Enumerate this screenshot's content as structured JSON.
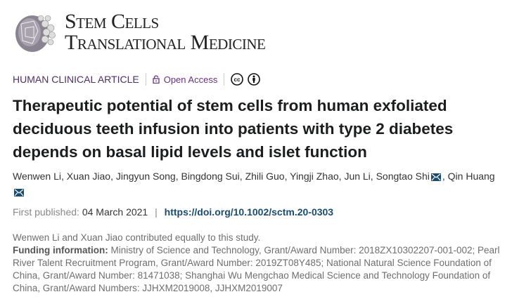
{
  "journal": {
    "logo_line1": "Stem Cells",
    "logo_line2": "Translational Medicine"
  },
  "meta": {
    "category": "HUMAN CLINICAL ARTICLE",
    "access": "Open Access",
    "icons": [
      "lock-icon",
      "cc-icon",
      "attribution-icon"
    ]
  },
  "title": "Therapeutic potential of stem cells from human exfoliated deciduous teeth infusion into patients with type 2 diabetes depends on basal lipid levels and islet function",
  "authors": [
    "Wenwen Li",
    "Xuan Jiao",
    "Jingyun Song",
    "Bingdong Sui",
    "Zhili Guo",
    "Yingji Zhao",
    "Jun Li",
    "Songtao Shi",
    "Qin Huang"
  ],
  "publication": {
    "label": "First published:",
    "date": "04 March 2021",
    "separator": "|",
    "doi": "https://doi.org/10.1002/sctm.20-0303"
  },
  "notes": {
    "contribution": "Wenwen Li and Xuan Jiao contributed equally to this study.",
    "funding_label": "Funding information:",
    "funding_text": "Ministry of Science and Technology, Grant/Award Number: 2018ZX10302207-001-002; Pearl River Talent Recruitment Program, Grant/Award Number: 2019ZT08Y485; National Natural Science Foundation of China, Grant/Award Number: 81471038; Shanghai Wu Mengchao Medical Science and Technology Foundation of China, Grant/Award Numbers: JJHXM2019008, JJHXM2019007"
  }
}
